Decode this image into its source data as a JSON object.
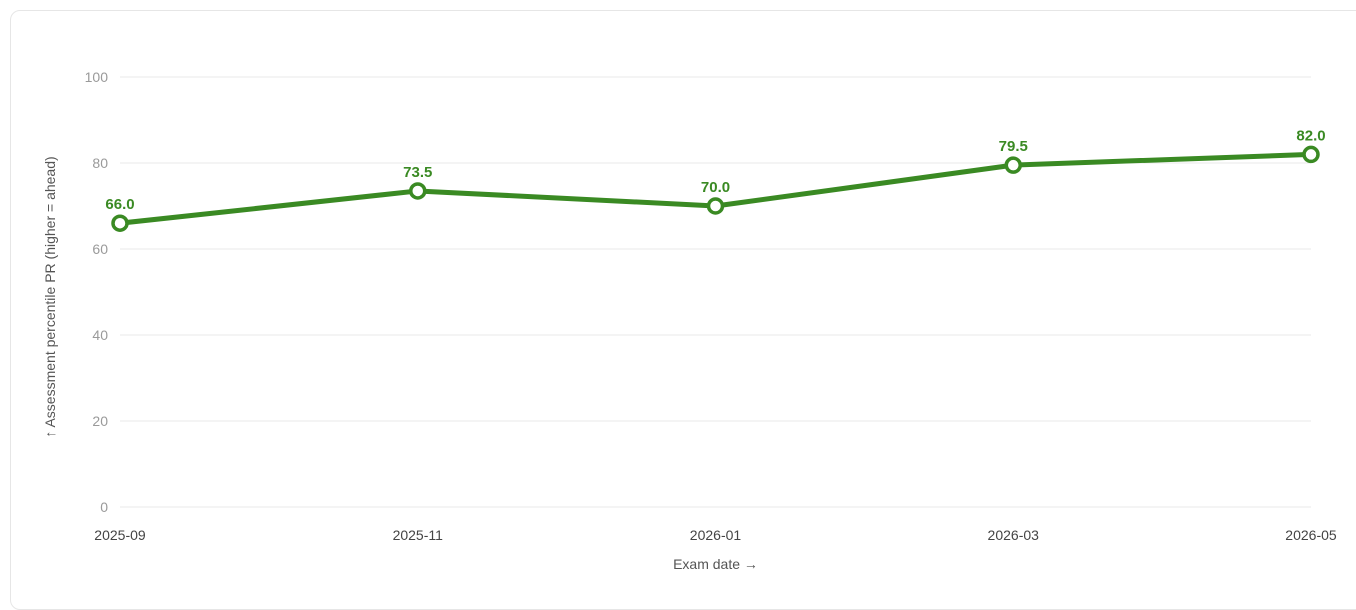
{
  "chart_data": {
    "type": "line",
    "x": [
      "2025-09",
      "2025-11",
      "2026-01",
      "2026-03",
      "2026-05"
    ],
    "series": [
      {
        "values": [
          66.0,
          73.5,
          70.0,
          79.5,
          82.0
        ],
        "labels": [
          "66.0",
          "73.5",
          "70.0",
          "79.5",
          "82.0"
        ],
        "color": "#3a8a23"
      }
    ],
    "yticks": [
      "0",
      "20",
      "40",
      "60",
      "80",
      "100"
    ],
    "ylim": [
      0,
      100
    ],
    "xlabel": "Exam date →",
    "ylabel": "↑ Assessment percentile PR (higher = ahead)",
    "grid": true,
    "title": ""
  }
}
